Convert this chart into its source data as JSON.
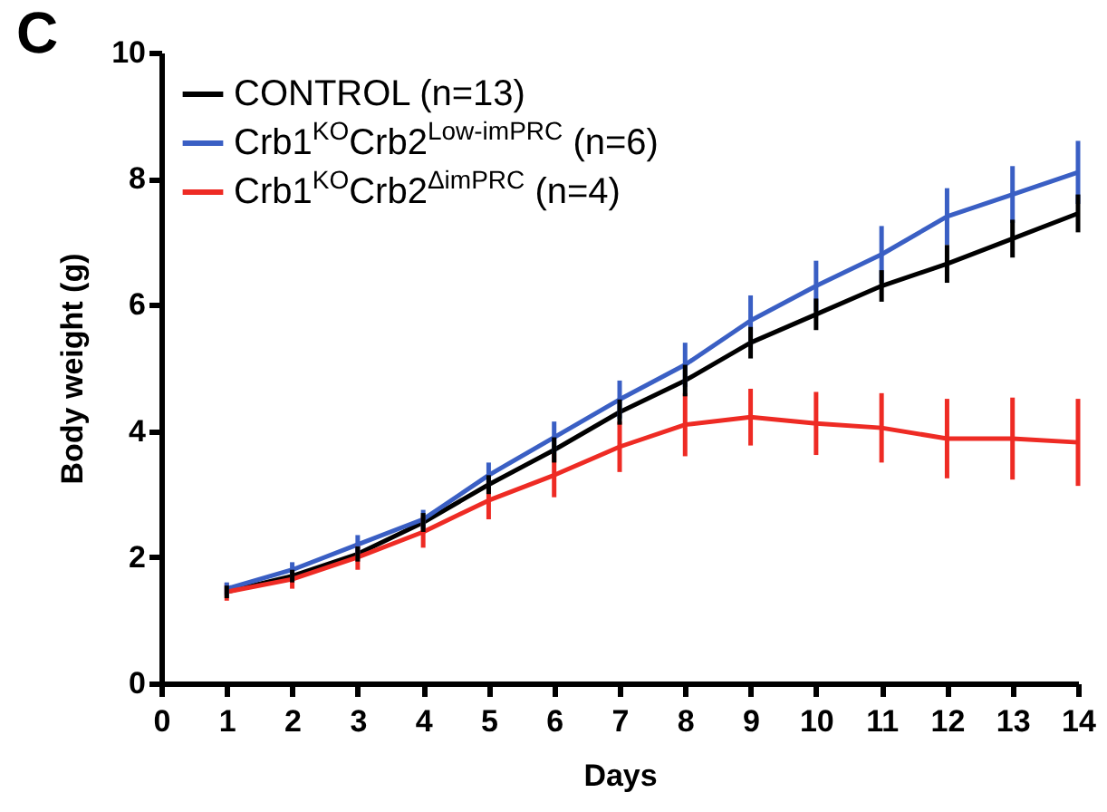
{
  "chart_data": {
    "type": "line",
    "title": "C",
    "xlabel": "Days",
    "ylabel": "Body weight (g)",
    "x": [
      1,
      2,
      3,
      4,
      5,
      6,
      7,
      8,
      9,
      10,
      11,
      12,
      13,
      14
    ],
    "xlim": [
      0,
      14
    ],
    "xticks": [
      0,
      1,
      2,
      3,
      4,
      5,
      6,
      7,
      8,
      9,
      10,
      11,
      12,
      13,
      14
    ],
    "ylim": [
      0,
      10
    ],
    "yticks": [
      0,
      2,
      4,
      6,
      8,
      10
    ],
    "grid": false,
    "legend": "top left",
    "line_style": "solid",
    "series": [
      {
        "name": "CONTROL (n=13)",
        "color": "#000000",
        "values": [
          1.45,
          1.7,
          2.05,
          2.55,
          3.15,
          3.7,
          4.3,
          4.8,
          5.4,
          5.85,
          6.3,
          6.65,
          7.05,
          7.45
        ],
        "errors": [
          0.1,
          0.1,
          0.12,
          0.15,
          0.15,
          0.2,
          0.2,
          0.25,
          0.25,
          0.25,
          0.25,
          0.3,
          0.3,
          0.3
        ]
      },
      {
        "name": "Crb1$^{KO}$Crb2$^{Low-imPRC}$ (n=6)",
        "color": "#3a5fc4",
        "values": [
          1.5,
          1.8,
          2.2,
          2.6,
          3.3,
          3.9,
          4.5,
          5.05,
          5.75,
          6.3,
          6.8,
          7.4,
          7.75,
          8.1
        ],
        "errors": [
          0.1,
          0.12,
          0.15,
          0.15,
          0.2,
          0.25,
          0.3,
          0.35,
          0.4,
          0.4,
          0.45,
          0.45,
          0.45,
          0.5
        ]
      },
      {
        "name": "Crb1$^{KO}$Crb2$^{ΔimPRC}$ (n=4)",
        "color": "#ee2b24",
        "values": [
          1.45,
          1.65,
          2.0,
          2.4,
          2.9,
          3.3,
          3.75,
          4.1,
          4.22,
          4.12,
          4.05,
          3.88,
          3.88,
          3.82
        ],
        "errors": [
          0.14,
          0.15,
          0.2,
          0.25,
          0.3,
          0.35,
          0.4,
          0.5,
          0.45,
          0.5,
          0.55,
          0.63,
          0.65,
          0.69
        ]
      }
    ]
  }
}
